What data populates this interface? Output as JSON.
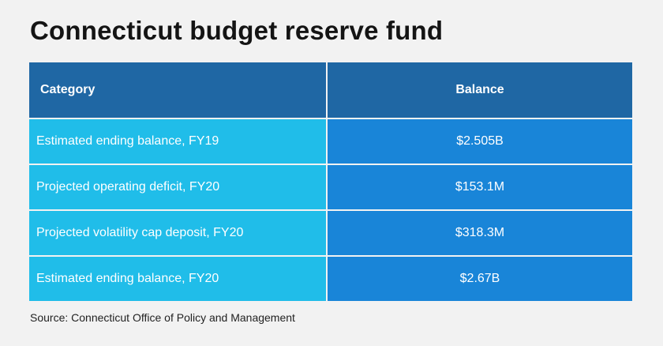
{
  "title": "Connecticut budget reserve fund",
  "chart_data": {
    "type": "table",
    "columns": [
      "Category",
      "Balance"
    ],
    "rows": [
      [
        "Estimated ending balance, FY19",
        "$2.505B"
      ],
      [
        "Projected operating deficit, FY20",
        "$153.1M"
      ],
      [
        "Projected volatility cap deposit, FY20",
        "$318.3M"
      ],
      [
        "Estimated ending balance, FY20",
        "$2.67B"
      ]
    ]
  },
  "source": "Source: Connecticut Office of Policy and Management",
  "colors": {
    "header": "#1f67a4",
    "category_cell": "#20bde9",
    "balance_cell": "#1985d8",
    "background": "#f2f2f2"
  }
}
